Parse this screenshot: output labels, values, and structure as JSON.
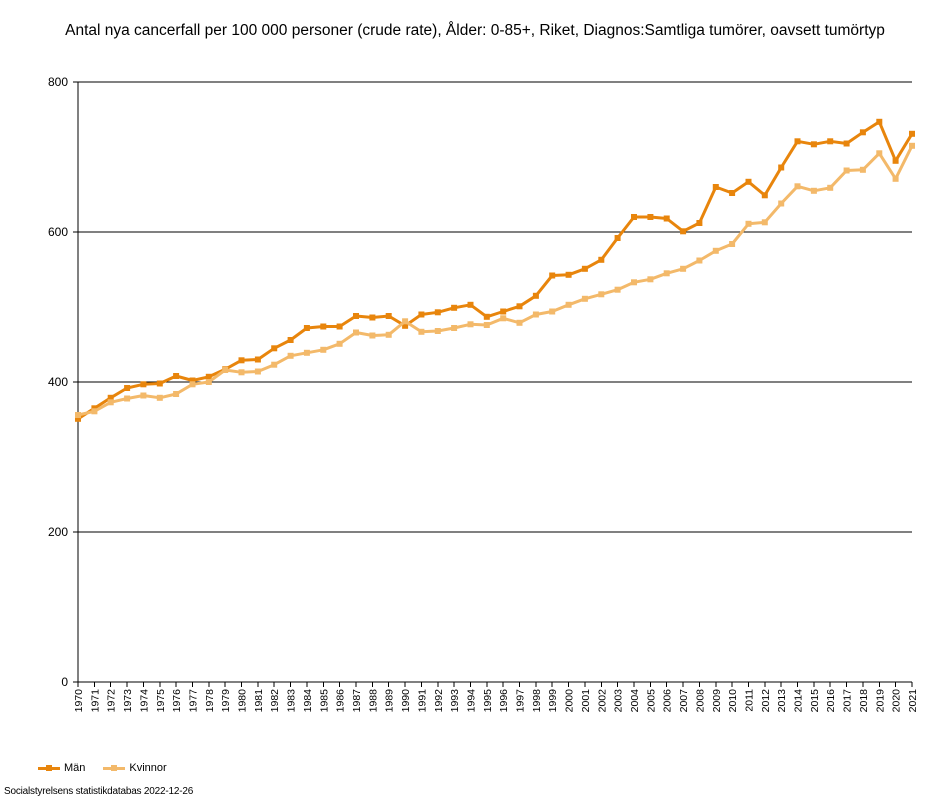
{
  "title": "Antal nya cancerfall per 100 000 personer (crude rate), Ålder: 0-85+, Riket, Diagnos:Samtliga tumörer, oavsett tumörtyp",
  "source": "Socialstyrelsens statistikdatabas 2022-12-26",
  "colors": {
    "man": "#E8850C",
    "kvinnor": "#F3B96A",
    "grid": "#000000"
  },
  "legend": [
    {
      "label": "Män",
      "color": "#E8850C"
    },
    {
      "label": "Kvinnor",
      "color": "#F3B96A"
    }
  ],
  "chart_data": {
    "type": "line",
    "title": "Antal nya cancerfall per 100 000 personer (crude rate), Ålder: 0-85+, Riket, Diagnos:Samtliga tumörer, oavsett tumörtyp",
    "xlabel": "",
    "ylabel": "",
    "ylim": [
      0,
      800
    ],
    "yticks": [
      0,
      200,
      400,
      600,
      800
    ],
    "grid": true,
    "legend_position": "bottom-left",
    "categories": [
      "1970",
      "1971",
      "1972",
      "1973",
      "1974",
      "1975",
      "1976",
      "1977",
      "1978",
      "1979",
      "1980",
      "1981",
      "1982",
      "1983",
      "1984",
      "1985",
      "1986",
      "1987",
      "1988",
      "1989",
      "1990",
      "1991",
      "1992",
      "1993",
      "1994",
      "1995",
      "1996",
      "1997",
      "1998",
      "1999",
      "2000",
      "2001",
      "2002",
      "2003",
      "2004",
      "2005",
      "2006",
      "2007",
      "2008",
      "2009",
      "2010",
      "2011",
      "2012",
      "2013",
      "2014",
      "2015",
      "2016",
      "2017",
      "2018",
      "2019",
      "2020",
      "2021"
    ],
    "series": [
      {
        "name": "Män",
        "color": "#E8850C",
        "values": [
          351,
          365,
          379,
          392,
          397,
          398,
          408,
          402,
          407,
          417,
          429,
          430,
          445,
          456,
          472,
          474,
          474,
          488,
          486,
          488,
          475,
          490,
          493,
          499,
          503,
          487,
          494,
          501,
          515,
          542,
          543,
          551,
          563,
          592,
          620,
          620,
          618,
          601,
          612,
          660,
          652,
          667,
          649,
          686,
          721,
          717,
          721,
          718,
          733,
          747,
          695,
          731
        ]
      },
      {
        "name": "Kvinnor",
        "color": "#F3B96A",
        "values": [
          356,
          361,
          373,
          378,
          382,
          379,
          384,
          397,
          400,
          416,
          413,
          414,
          423,
          435,
          439,
          443,
          451,
          466,
          462,
          463,
          481,
          467,
          468,
          472,
          477,
          476,
          485,
          479,
          490,
          494,
          503,
          511,
          517,
          523,
          533,
          537,
          545,
          551,
          562,
          575,
          584,
          611,
          613,
          638,
          661,
          655,
          659,
          682,
          683,
          705,
          671,
          715
        ]
      }
    ]
  }
}
